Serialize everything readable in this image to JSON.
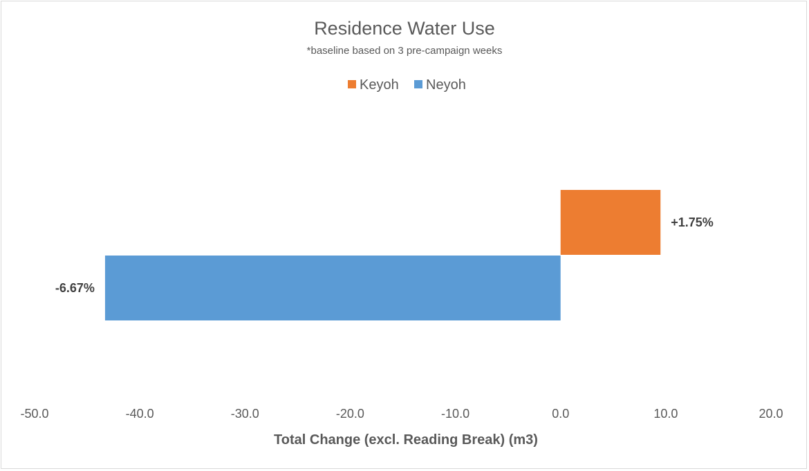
{
  "chart_data": {
    "type": "bar",
    "orientation": "horizontal",
    "title": "Residence Water Use",
    "subtitle": "*baseline based on 3 pre-campaign weeks",
    "xlabel": "Total Change (excl. Reading Break) (m3)",
    "ylabel": "",
    "xlim": [
      -50,
      20
    ],
    "xticks": [
      "-50.0",
      "-40.0",
      "-30.0",
      "-20.0",
      "-10.0",
      "0.0",
      "10.0",
      "20.0"
    ],
    "grid": false,
    "legend_position": "top",
    "series": [
      {
        "name": "Keyoh",
        "value": 9.5,
        "label": "+1.75%",
        "color": "#ED7D31"
      },
      {
        "name": "Neyoh",
        "value": -43.3,
        "label": "-6.67%",
        "color": "#5B9BD5"
      }
    ]
  }
}
